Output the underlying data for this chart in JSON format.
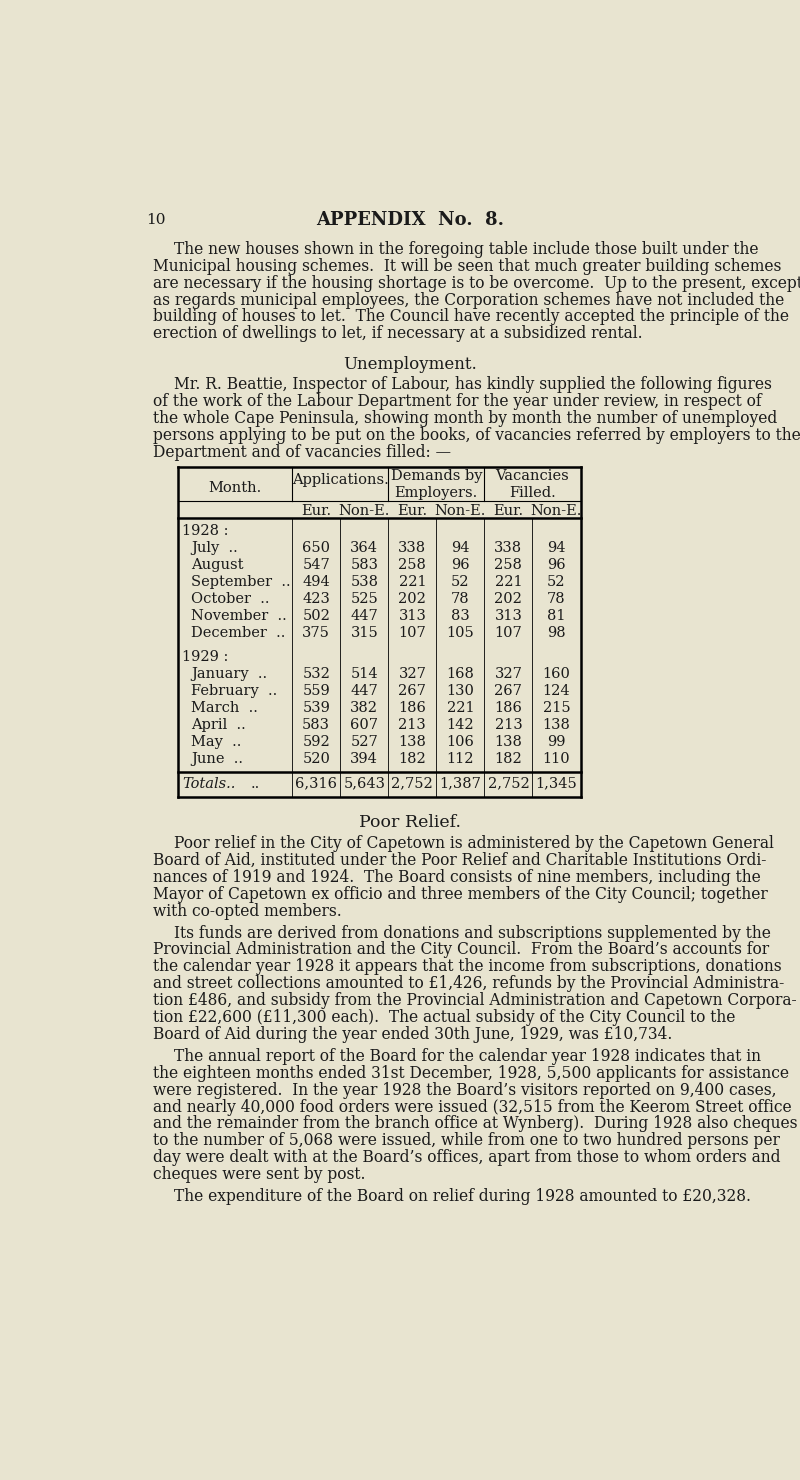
{
  "background_color": "#e8e4d0",
  "page_number": "10",
  "header": "APPENDIX  No.  8.",
  "para1_lines": [
    "The new houses shown in the foregoing table include those built under the",
    "Municipal housing schemes.  It will be seen that much greater building schemes",
    "are necessary if the housing shortage is to be overcome.  Up to the present, except",
    "as regards municipal employees, the Corporation schemes have not included the",
    "building of houses to let.  The Council have recently accepted the principle of the",
    "erection of dwellings to let, if necessary at a subsidized rental."
  ],
  "section_unemployment": "Unemployment.",
  "para2_lines": [
    "Mr. R. Beattie, Inspector of Labour, has kindly supplied the following figures",
    "of the work of the Labour Department for the year under review, in respect of",
    "the whole Cape Peninsula, showing month by month the number of unemployed",
    "persons applying to be put on the books, of vacancies referred by employers to the",
    "Department and of vacancies filled: —"
  ],
  "table": {
    "col_headers_top": [
      "Applications.",
      "Demands by\nEmployers.",
      "Vacancies\nFilled."
    ],
    "col_headers_sub": [
      "Eur.",
      "Non-E.",
      "Eur.",
      "Non-E.",
      "Eur.",
      "Non-E."
    ],
    "month_col": "Month.",
    "year1928_label": "1928 :",
    "rows_1928": [
      [
        "July  ..",
        "650",
        "364",
        "338",
        "94",
        "338",
        "94"
      ],
      [
        "August",
        "547",
        "583",
        "258",
        "96",
        "258",
        "96"
      ],
      [
        "September  ..",
        "494",
        "538",
        "221",
        "52",
        "221",
        "52"
      ],
      [
        "October  ..",
        "423",
        "525",
        "202",
        "78",
        "202",
        "78"
      ],
      [
        "November  ..",
        "502",
        "447",
        "313",
        "83",
        "313",
        "81"
      ],
      [
        "December  ..",
        "375",
        "315",
        "107",
        "105",
        "107",
        "98"
      ]
    ],
    "year1929_label": "1929 :",
    "rows_1929": [
      [
        "January  ..",
        "532",
        "514",
        "327",
        "168",
        "327",
        "160"
      ],
      [
        "February  ..",
        "559",
        "447",
        "267",
        "130",
        "267",
        "124"
      ],
      [
        "March  ..",
        "539",
        "382",
        "186",
        "221",
        "186",
        "215"
      ],
      [
        "April  ..",
        "583",
        "607",
        "213",
        "142",
        "213",
        "138"
      ],
      [
        "May  ..",
        "592",
        "527",
        "138",
        "106",
        "138",
        "99"
      ],
      [
        "June  ..",
        "520",
        "394",
        "182",
        "112",
        "182",
        "110"
      ]
    ],
    "totals_row": [
      "Totals..",
      "6,316",
      "5,643",
      "2,752",
      "1,387",
      "2,752",
      "1,345"
    ]
  },
  "section_poor_relief": "Poor Relief.",
  "para3_lines": [
    "Poor relief in the City of Capetown is administered by the Capetown General",
    "Board of Aid, instituted under the Poor Relief and Charitable Institutions Ordi-",
    "nances of 1919 and 1924.  The Board consists of nine members, including the",
    "Mayor of Capetown ex officio and three members of the City Council; together",
    "with co-opted members."
  ],
  "para4_lines": [
    "Its funds are derived from donations and subscriptions supplemented by the",
    "Provincial Administration and the City Council.  From the Board’s accounts for",
    "the calendar year 1928 it appears that the income from subscriptions, donations",
    "and street collections amounted to £1,426, refunds by the Provincial Administra-",
    "tion £486, and subsidy from the Provincial Administration and Capetown Corpora-",
    "tion £22,600 (£11,300 each).  The actual subsidy of the City Council to the",
    "Board of Aid during the year ended 30th June, 1929, was £10,734."
  ],
  "para5_lines": [
    "The annual report of the Board for the calendar year 1928 indicates that in",
    "the eighteen months ended 31st December, 1928, 5,500 applicants for assistance",
    "were registered.  In the year 1928 the Board’s visitors reported on 9,400 cases,",
    "and nearly 40,000 food orders were issued (32,515 from the Keerom Street office",
    "and the remainder from the branch office at Wynberg).  During 1928 also cheques",
    "to the number of 5,068 were issued, while from one to two hundred persons per",
    "day were dealt with at the Board’s offices, apart from those to whom orders and",
    "cheques were sent by post."
  ],
  "para6": "The expenditure of the Board on relief during 1928 amounted to £20,328."
}
